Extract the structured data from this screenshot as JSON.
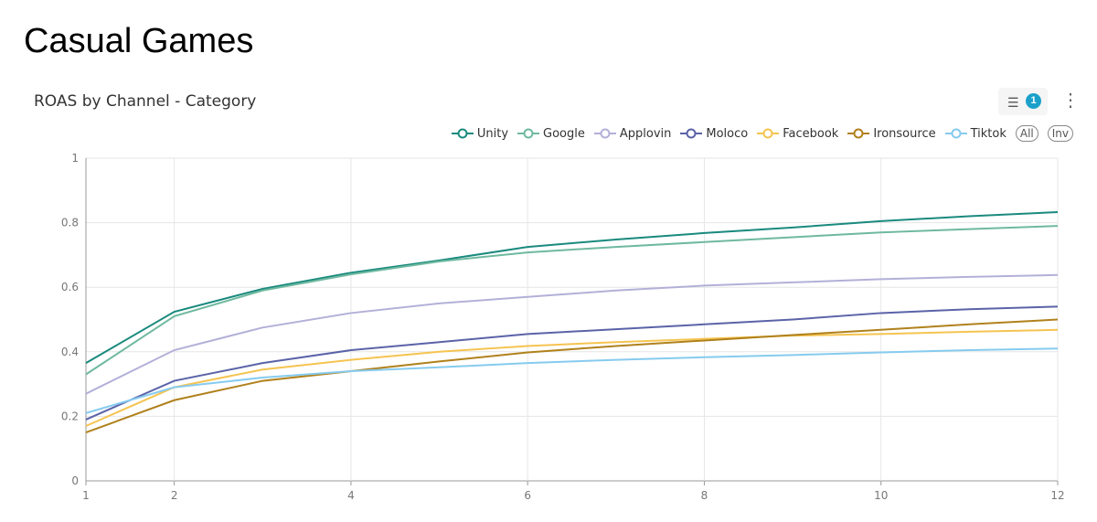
{
  "page_title": "Casual Games",
  "chart_title": "ROAS by Channel - Category",
  "toolbar": {
    "filter_icon": "filter-icon",
    "filter_count": "1",
    "more_icon": "more-vertical-icon"
  },
  "legend_buttons": {
    "all": "All",
    "inv": "Inv"
  },
  "chart_data": {
    "type": "line",
    "title": "ROAS by Channel - Category",
    "xlabel": "",
    "ylabel": "",
    "x": [
      1,
      2,
      3,
      4,
      5,
      6,
      7,
      8,
      9,
      10,
      11,
      12
    ],
    "xticks": [
      1,
      2,
      4,
      6,
      8,
      10,
      12
    ],
    "yticks": [
      0,
      0.2,
      0.4,
      0.6,
      0.8,
      1
    ],
    "xlim": [
      1,
      12
    ],
    "ylim": [
      0,
      1
    ],
    "grid": true,
    "legend": "top-right",
    "series": [
      {
        "name": "Unity",
        "color": "#1a8a7e",
        "values": [
          0.365,
          0.524,
          0.595,
          0.645,
          0.683,
          0.725,
          0.748,
          0.768,
          0.785,
          0.805,
          0.82,
          0.833
        ]
      },
      {
        "name": "Google",
        "color": "#6fb9a0",
        "values": [
          0.33,
          0.51,
          0.59,
          0.64,
          0.68,
          0.708,
          0.725,
          0.74,
          0.755,
          0.77,
          0.78,
          0.79
        ]
      },
      {
        "name": "Applovin",
        "color": "#b3b0d8",
        "values": [
          0.27,
          0.405,
          0.475,
          0.52,
          0.55,
          0.57,
          0.59,
          0.605,
          0.615,
          0.625,
          0.632,
          0.638
        ]
      },
      {
        "name": "Moloco",
        "color": "#5b63a8",
        "values": [
          0.19,
          0.31,
          0.365,
          0.405,
          0.43,
          0.455,
          0.47,
          0.485,
          0.5,
          0.52,
          0.532,
          0.54
        ]
      },
      {
        "name": "Facebook",
        "color": "#f5c451",
        "values": [
          0.17,
          0.29,
          0.345,
          0.375,
          0.4,
          0.418,
          0.43,
          0.44,
          0.45,
          0.455,
          0.462,
          0.468
        ]
      },
      {
        "name": "Ironsource",
        "color": "#b0811c",
        "values": [
          0.15,
          0.25,
          0.31,
          0.34,
          0.37,
          0.398,
          0.418,
          0.435,
          0.452,
          0.468,
          0.485,
          0.5
        ]
      },
      {
        "name": "Tiktok",
        "color": "#86cbef",
        "values": [
          0.21,
          0.29,
          0.32,
          0.34,
          0.352,
          0.365,
          0.375,
          0.383,
          0.39,
          0.398,
          0.405,
          0.41
        ]
      }
    ]
  }
}
